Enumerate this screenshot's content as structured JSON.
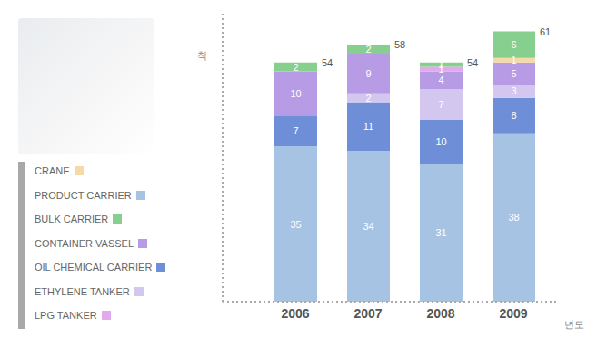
{
  "chart_data": {
    "type": "bar",
    "stacked": true,
    "data_labels": true,
    "tick_labels": "x",
    "x_label": "년도",
    "y_label": "척",
    "categories": [
      "2006",
      "2007",
      "2008",
      "2009"
    ],
    "ylim": [
      0,
      65
    ],
    "yticks": [],
    "totals": [
      54,
      58,
      54,
      61
    ],
    "series": [
      {
        "name": "CRANE",
        "color": "#f5d9a6",
        "values": [
          null,
          null,
          null,
          1
        ]
      },
      {
        "name": "PRODUCT CARRIER",
        "color": "#a6c3e4",
        "values": [
          35,
          34,
          31,
          38
        ]
      },
      {
        "name": "BULK CARRIER",
        "color": "#86cf8f",
        "values": [
          2,
          2,
          1,
          6
        ]
      },
      {
        "name": "CONTAINER VASSEL",
        "color": "#b79be5",
        "values": [
          10,
          9,
          4,
          5
        ]
      },
      {
        "name": "OIL CHEMICAL CARRIER",
        "color": "#6e8fd8",
        "values": [
          7,
          11,
          10,
          8
        ]
      },
      {
        "name": "ETHYLENE TANKER",
        "color": "#d3c6ef",
        "values": [
          null,
          2,
          7,
          3
        ]
      },
      {
        "name": "LPG TANKER",
        "color": "#e2a9ec",
        "values": [
          null,
          null,
          1,
          null
        ]
      }
    ]
  }
}
